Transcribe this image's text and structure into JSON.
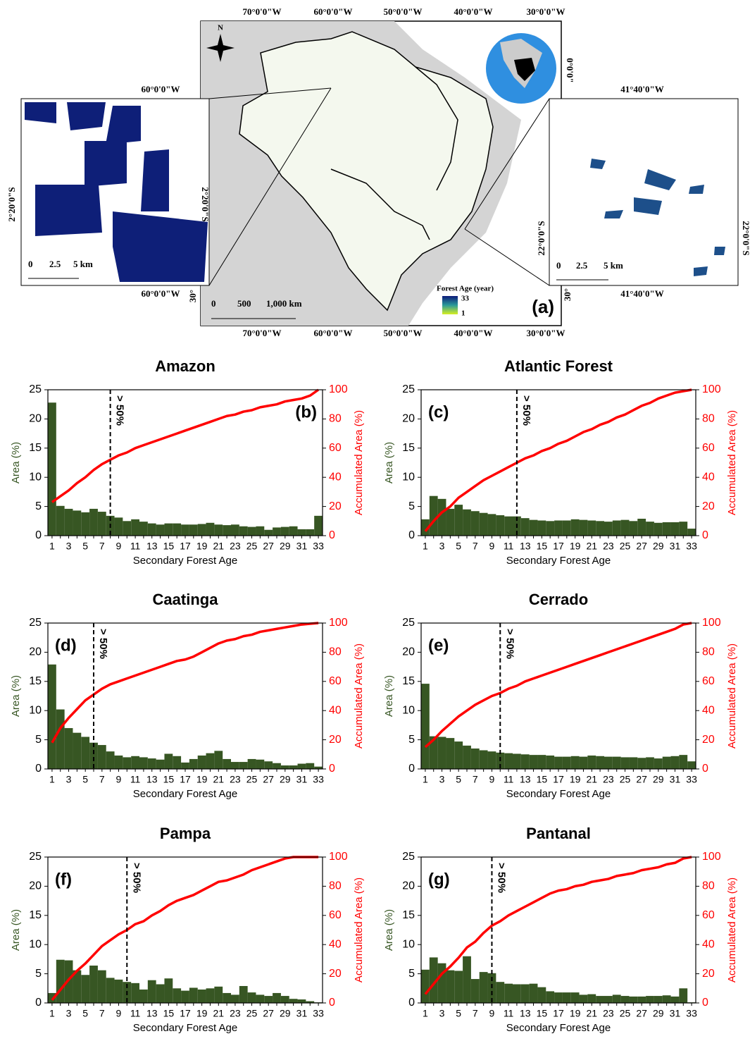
{
  "map": {
    "panel_label": "(a)",
    "north": "N",
    "top_ticks": [
      "70°0'0\"W",
      "60°0'0\"W",
      "50°0'0\"W",
      "40°0'0\"W",
      "30°0'0\"W"
    ],
    "bottom_ticks": [
      "70°0'0\"W",
      "60°0'0\"W",
      "50°0'0\"W",
      "40°0'0\"W",
      "30°0'0\"W"
    ],
    "lat_right": "0°0'0\"",
    "lat_left": "30°",
    "lat_left_inset": "2°20'0\"S",
    "scale": [
      "0",
      "500",
      "1,000 km"
    ],
    "legend_title": "Forest Age (year)",
    "legend_max": "33",
    "legend_min": "1",
    "inset_left": {
      "top": "60°0'0\"W",
      "bottom": "60°0'0\"W",
      "side": "2°20'0\"S",
      "scale": [
        "0",
        "2.5",
        "5  km"
      ]
    },
    "inset_right": {
      "top": "41°40'0\"W",
      "bottom": "41°40'0\"W",
      "side_left": "22°0'0\"S",
      "side_right": "22°0'0\"S",
      "lat_low": "30°",
      "scale": [
        "0",
        "2.5",
        "5  km"
      ]
    }
  },
  "chart_data": [
    {
      "type": "bar_line",
      "title": "Amazon",
      "panel_label": "(b)",
      "label_corner": "right",
      "x_label": "Secondary Forest Age",
      "y_label": "Area (%)",
      "y2_label": "Accumulated Area (%)",
      "categories": [
        1,
        null,
        3,
        null,
        5,
        null,
        7,
        null,
        9,
        null,
        11,
        null,
        13,
        null,
        15,
        null,
        17,
        null,
        19,
        null,
        21,
        null,
        23,
        null,
        25,
        null,
        27,
        null,
        29,
        null,
        31,
        null,
        33
      ],
      "series": [
        {
          "color": "#375623",
          "values": [
            22.8,
            5.1,
            4.6,
            4.3,
            4.0,
            4.6,
            4.1,
            3.4,
            3.1,
            2.5,
            2.8,
            2.4,
            2.1,
            1.9,
            2.1,
            2.1,
            1.9,
            1.9,
            2.0,
            2.2,
            1.9,
            1.8,
            1.9,
            1.6,
            1.5,
            1.6,
            1.0,
            1.4,
            1.5,
            1.6,
            1.1,
            1.1,
            3.4
          ]
        },
        {
          "color": "#ff0000",
          "axis": "y2",
          "values": [
            23,
            27,
            31,
            36,
            40,
            45,
            49,
            52,
            55,
            57,
            60,
            62,
            64,
            66,
            68,
            70,
            72,
            74,
            76,
            78,
            80,
            82,
            83,
            85,
            86,
            88,
            89,
            90,
            92,
            93,
            94,
            96,
            100
          ]
        }
      ],
      "threshold": {
        "x": 8,
        "label": "> 50%"
      },
      "ylim": [
        0,
        25
      ],
      "yticks": [
        0,
        5,
        10,
        15,
        20,
        25
      ],
      "y2lim": [
        0,
        100
      ],
      "y2ticks": [
        0,
        20,
        40,
        60,
        80,
        100
      ]
    },
    {
      "type": "bar_line",
      "title": "Atlantic Forest",
      "panel_label": "(c)",
      "label_corner": "left",
      "x_label": "Secondary Forest Age",
      "y_label": "Area (%)",
      "y2_label": "Accumulated Area (%)",
      "categories": [
        1,
        null,
        3,
        null,
        5,
        null,
        7,
        null,
        9,
        null,
        11,
        null,
        13,
        null,
        15,
        null,
        17,
        null,
        19,
        null,
        21,
        null,
        23,
        null,
        25,
        null,
        27,
        null,
        29,
        null,
        31,
        null,
        33
      ],
      "series": [
        {
          "color": "#375623",
          "values": [
            2.8,
            6.8,
            6.3,
            4.6,
            5.3,
            4.5,
            4.2,
            3.9,
            3.7,
            3.5,
            3.3,
            3.3,
            3.0,
            2.7,
            2.6,
            2.5,
            2.6,
            2.6,
            2.8,
            2.7,
            2.6,
            2.5,
            2.4,
            2.6,
            2.7,
            2.5,
            2.9,
            2.4,
            2.2,
            2.3,
            2.3,
            2.4,
            1.2
          ]
        },
        {
          "color": "#ff0000",
          "axis": "y2",
          "values": [
            3,
            10,
            16,
            20,
            26,
            30,
            34,
            38,
            41,
            44,
            47,
            50,
            53,
            55,
            58,
            60,
            63,
            65,
            68,
            71,
            73,
            76,
            78,
            81,
            83,
            86,
            89,
            91,
            94,
            96,
            98,
            99,
            100
          ]
        }
      ],
      "threshold": {
        "x": 12,
        "label": "> 50%"
      },
      "ylim": [
        0,
        25
      ],
      "yticks": [
        0,
        5,
        10,
        15,
        20,
        25
      ],
      "y2lim": [
        0,
        100
      ],
      "y2ticks": [
        0,
        20,
        40,
        60,
        80,
        100
      ]
    },
    {
      "type": "bar_line",
      "title": "Caatinga",
      "panel_label": "(d)",
      "label_corner": "left",
      "x_label": "Secondary Forest Age",
      "y_label": "Area (%)",
      "y2_label": "Accumulated Area (%)",
      "categories": [
        1,
        null,
        3,
        null,
        5,
        null,
        7,
        null,
        9,
        null,
        11,
        null,
        13,
        null,
        15,
        null,
        17,
        null,
        19,
        null,
        21,
        null,
        23,
        null,
        25,
        null,
        27,
        null,
        29,
        null,
        31,
        null,
        33
      ],
      "series": [
        {
          "color": "#375623",
          "values": [
            17.9,
            10.2,
            7.0,
            6.2,
            5.5,
            4.5,
            4.1,
            3.0,
            2.3,
            2.0,
            2.2,
            2.0,
            1.8,
            1.6,
            2.6,
            2.2,
            1.1,
            1.7,
            2.3,
            2.7,
            3.1,
            1.7,
            1.2,
            1.2,
            1.7,
            1.6,
            1.3,
            1.0,
            0.6,
            0.6,
            0.9,
            1.0,
            0.4
          ]
        },
        {
          "color": "#ff0000",
          "axis": "y2",
          "values": [
            18,
            28,
            35,
            41,
            47,
            51,
            55,
            58,
            60,
            62,
            64,
            66,
            68,
            70,
            72,
            74,
            75,
            77,
            80,
            83,
            86,
            88,
            89,
            91,
            92,
            94,
            95,
            96,
            97,
            98,
            99,
            99.5,
            100
          ]
        }
      ],
      "threshold": {
        "x": 6,
        "label": "> 50%"
      },
      "ylim": [
        0,
        25
      ],
      "yticks": [
        0,
        5,
        10,
        15,
        20,
        25
      ],
      "y2lim": [
        0,
        100
      ],
      "y2ticks": [
        0,
        20,
        40,
        60,
        80,
        100
      ]
    },
    {
      "type": "bar_line",
      "title": "Cerrado",
      "panel_label": "(e)",
      "label_corner": "left",
      "x_label": "Secondary Forest Age",
      "y_label": "Area (%)",
      "y2_label": "Accumulated Area (%)",
      "categories": [
        1,
        null,
        3,
        null,
        5,
        null,
        7,
        null,
        9,
        null,
        11,
        null,
        13,
        null,
        15,
        null,
        17,
        null,
        19,
        null,
        21,
        null,
        23,
        null,
        25,
        null,
        27,
        null,
        29,
        null,
        31,
        null,
        33
      ],
      "series": [
        {
          "color": "#375623",
          "values": [
            14.6,
            5.6,
            5.5,
            5.3,
            4.7,
            4.0,
            3.5,
            3.2,
            3.0,
            2.8,
            2.7,
            2.6,
            2.5,
            2.4,
            2.4,
            2.3,
            2.1,
            2.1,
            2.2,
            2.1,
            2.3,
            2.2,
            2.1,
            2.1,
            2.0,
            2.0,
            1.9,
            2.0,
            1.8,
            2.1,
            2.2,
            2.4,
            1.3
          ]
        },
        {
          "color": "#ff0000",
          "axis": "y2",
          "values": [
            15,
            20,
            26,
            31,
            36,
            40,
            44,
            47,
            50,
            52,
            55,
            57,
            60,
            62,
            64,
            66,
            68,
            70,
            72,
            74,
            76,
            78,
            80,
            82,
            84,
            86,
            88,
            90,
            92,
            94,
            96,
            99,
            100
          ]
        }
      ],
      "threshold": {
        "x": 10,
        "label": "> 50%"
      },
      "ylim": [
        0,
        25
      ],
      "yticks": [
        0,
        5,
        10,
        15,
        20,
        25
      ],
      "y2lim": [
        0,
        100
      ],
      "y2ticks": [
        0,
        20,
        40,
        60,
        80,
        100
      ]
    },
    {
      "type": "bar_line",
      "title": "Pampa",
      "panel_label": "(f)",
      "label_corner": "left",
      "x_label": "Secondary Forest Age",
      "y_label": "Area (%)",
      "y2_label": "Accumulated Area (%)",
      "categories": [
        1,
        null,
        3,
        null,
        5,
        null,
        7,
        null,
        9,
        null,
        11,
        null,
        13,
        null,
        15,
        null,
        17,
        null,
        19,
        null,
        21,
        null,
        23,
        null,
        25,
        null,
        27,
        null,
        29,
        null,
        31,
        null,
        33
      ],
      "series": [
        {
          "color": "#375623",
          "values": [
            1.7,
            7.4,
            7.3,
            5.6,
            4.8,
            6.4,
            5.6,
            4.3,
            4.0,
            3.6,
            3.4,
            2.3,
            3.9,
            3.2,
            4.2,
            2.5,
            2.1,
            2.6,
            2.3,
            2.5,
            2.8,
            1.7,
            1.4,
            2.9,
            1.8,
            1.4,
            1.2,
            1.7,
            1.2,
            0.7,
            0.6,
            0.3,
            0.1
          ]
        },
        {
          "color": "#ff0000",
          "axis": "y2",
          "values": [
            2,
            9,
            16,
            22,
            27,
            33,
            39,
            43,
            47,
            50,
            54,
            56,
            60,
            63,
            67,
            70,
            72,
            74,
            77,
            80,
            83,
            84,
            86,
            88,
            91,
            93,
            95,
            97,
            99,
            100,
            100,
            100,
            100
          ]
        }
      ],
      "threshold": {
        "x": 10,
        "label": "> 50%"
      },
      "ylim": [
        0,
        25
      ],
      "yticks": [
        0,
        5,
        10,
        15,
        20,
        25
      ],
      "y2lim": [
        0,
        100
      ],
      "y2ticks": [
        0,
        20,
        40,
        60,
        80,
        100
      ]
    },
    {
      "type": "bar_line",
      "title": "Pantanal",
      "panel_label": "(g)",
      "label_corner": "left",
      "x_label": "Secondary Forest Age",
      "y_label": "Area (%)",
      "y2_label": "Accumulated Area (%)",
      "categories": [
        1,
        null,
        3,
        null,
        5,
        null,
        7,
        null,
        9,
        null,
        11,
        null,
        13,
        null,
        15,
        null,
        17,
        null,
        19,
        null,
        21,
        null,
        23,
        null,
        25,
        null,
        27,
        null,
        29,
        null,
        31,
        null,
        33
      ],
      "series": [
        {
          "color": "#375623",
          "values": [
            5.7,
            7.8,
            6.8,
            5.6,
            5.5,
            8.0,
            4.1,
            5.3,
            5.1,
            3.6,
            3.3,
            3.2,
            3.2,
            3.3,
            2.7,
            2.0,
            1.8,
            1.8,
            1.8,
            1.4,
            1.5,
            1.2,
            1.2,
            1.4,
            1.2,
            1.1,
            1.1,
            1.2,
            1.2,
            1.3,
            1.1,
            2.5,
            0.1
          ]
        },
        {
          "color": "#ff0000",
          "axis": "y2",
          "values": [
            6,
            13,
            20,
            25,
            31,
            38,
            42,
            48,
            53,
            56,
            60,
            63,
            66,
            69,
            72,
            75,
            77,
            78,
            80,
            81,
            83,
            84,
            85,
            87,
            88,
            89,
            91,
            92,
            93,
            95,
            96,
            99,
            100
          ]
        }
      ],
      "threshold": {
        "x": 9,
        "label": "> 50%"
      },
      "ylim": [
        0,
        25
      ],
      "yticks": [
        0,
        5,
        10,
        15,
        20,
        25
      ],
      "y2lim": [
        0,
        100
      ],
      "y2ticks": [
        0,
        20,
        40,
        60,
        80,
        100
      ]
    }
  ]
}
